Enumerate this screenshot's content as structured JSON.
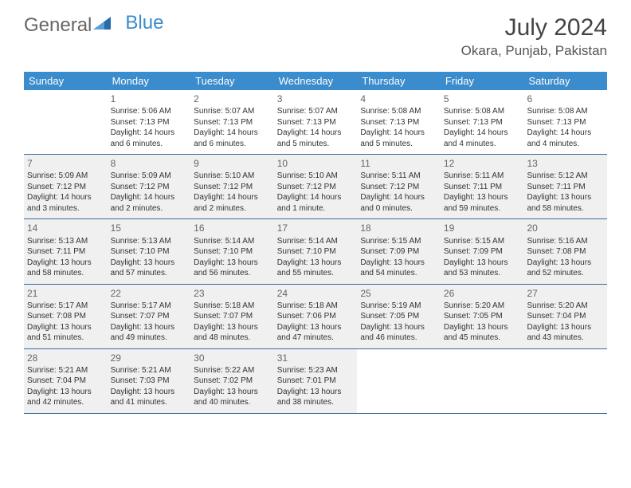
{
  "logo": {
    "part1": "General",
    "part2": "Blue"
  },
  "title": "July 2024",
  "location": "Okara, Punjab, Pakistan",
  "colors": {
    "header_bg": "#3a8ccc",
    "header_text": "#ffffff",
    "border": "#3a6a9c",
    "shaded_bg": "#f0f0f0",
    "cell_bg": "#ffffff",
    "text": "#333333",
    "daynum": "#666666",
    "logo_gray": "#666666",
    "logo_blue": "#3a8ccc"
  },
  "day_names": [
    "Sunday",
    "Monday",
    "Tuesday",
    "Wednesday",
    "Thursday",
    "Friday",
    "Saturday"
  ],
  "weeks": [
    [
      {
        "day": "",
        "sunrise": "",
        "sunset": "",
        "daylight": "",
        "shaded": false
      },
      {
        "day": "1",
        "sunrise": "Sunrise: 5:06 AM",
        "sunset": "Sunset: 7:13 PM",
        "daylight": "Daylight: 14 hours and 6 minutes.",
        "shaded": false
      },
      {
        "day": "2",
        "sunrise": "Sunrise: 5:07 AM",
        "sunset": "Sunset: 7:13 PM",
        "daylight": "Daylight: 14 hours and 6 minutes.",
        "shaded": false
      },
      {
        "day": "3",
        "sunrise": "Sunrise: 5:07 AM",
        "sunset": "Sunset: 7:13 PM",
        "daylight": "Daylight: 14 hours and 5 minutes.",
        "shaded": false
      },
      {
        "day": "4",
        "sunrise": "Sunrise: 5:08 AM",
        "sunset": "Sunset: 7:13 PM",
        "daylight": "Daylight: 14 hours and 5 minutes.",
        "shaded": false
      },
      {
        "day": "5",
        "sunrise": "Sunrise: 5:08 AM",
        "sunset": "Sunset: 7:13 PM",
        "daylight": "Daylight: 14 hours and 4 minutes.",
        "shaded": false
      },
      {
        "day": "6",
        "sunrise": "Sunrise: 5:08 AM",
        "sunset": "Sunset: 7:13 PM",
        "daylight": "Daylight: 14 hours and 4 minutes.",
        "shaded": false
      }
    ],
    [
      {
        "day": "7",
        "sunrise": "Sunrise: 5:09 AM",
        "sunset": "Sunset: 7:12 PM",
        "daylight": "Daylight: 14 hours and 3 minutes.",
        "shaded": true
      },
      {
        "day": "8",
        "sunrise": "Sunrise: 5:09 AM",
        "sunset": "Sunset: 7:12 PM",
        "daylight": "Daylight: 14 hours and 2 minutes.",
        "shaded": true
      },
      {
        "day": "9",
        "sunrise": "Sunrise: 5:10 AM",
        "sunset": "Sunset: 7:12 PM",
        "daylight": "Daylight: 14 hours and 2 minutes.",
        "shaded": true
      },
      {
        "day": "10",
        "sunrise": "Sunrise: 5:10 AM",
        "sunset": "Sunset: 7:12 PM",
        "daylight": "Daylight: 14 hours and 1 minute.",
        "shaded": true
      },
      {
        "day": "11",
        "sunrise": "Sunrise: 5:11 AM",
        "sunset": "Sunset: 7:12 PM",
        "daylight": "Daylight: 14 hours and 0 minutes.",
        "shaded": true
      },
      {
        "day": "12",
        "sunrise": "Sunrise: 5:11 AM",
        "sunset": "Sunset: 7:11 PM",
        "daylight": "Daylight: 13 hours and 59 minutes.",
        "shaded": true
      },
      {
        "day": "13",
        "sunrise": "Sunrise: 5:12 AM",
        "sunset": "Sunset: 7:11 PM",
        "daylight": "Daylight: 13 hours and 58 minutes.",
        "shaded": true
      }
    ],
    [
      {
        "day": "14",
        "sunrise": "Sunrise: 5:13 AM",
        "sunset": "Sunset: 7:11 PM",
        "daylight": "Daylight: 13 hours and 58 minutes.",
        "shaded": true
      },
      {
        "day": "15",
        "sunrise": "Sunrise: 5:13 AM",
        "sunset": "Sunset: 7:10 PM",
        "daylight": "Daylight: 13 hours and 57 minutes.",
        "shaded": true
      },
      {
        "day": "16",
        "sunrise": "Sunrise: 5:14 AM",
        "sunset": "Sunset: 7:10 PM",
        "daylight": "Daylight: 13 hours and 56 minutes.",
        "shaded": true
      },
      {
        "day": "17",
        "sunrise": "Sunrise: 5:14 AM",
        "sunset": "Sunset: 7:10 PM",
        "daylight": "Daylight: 13 hours and 55 minutes.",
        "shaded": true
      },
      {
        "day": "18",
        "sunrise": "Sunrise: 5:15 AM",
        "sunset": "Sunset: 7:09 PM",
        "daylight": "Daylight: 13 hours and 54 minutes.",
        "shaded": true
      },
      {
        "day": "19",
        "sunrise": "Sunrise: 5:15 AM",
        "sunset": "Sunset: 7:09 PM",
        "daylight": "Daylight: 13 hours and 53 minutes.",
        "shaded": true
      },
      {
        "day": "20",
        "sunrise": "Sunrise: 5:16 AM",
        "sunset": "Sunset: 7:08 PM",
        "daylight": "Daylight: 13 hours and 52 minutes.",
        "shaded": true
      }
    ],
    [
      {
        "day": "21",
        "sunrise": "Sunrise: 5:17 AM",
        "sunset": "Sunset: 7:08 PM",
        "daylight": "Daylight: 13 hours and 51 minutes.",
        "shaded": true
      },
      {
        "day": "22",
        "sunrise": "Sunrise: 5:17 AM",
        "sunset": "Sunset: 7:07 PM",
        "daylight": "Daylight: 13 hours and 49 minutes.",
        "shaded": true
      },
      {
        "day": "23",
        "sunrise": "Sunrise: 5:18 AM",
        "sunset": "Sunset: 7:07 PM",
        "daylight": "Daylight: 13 hours and 48 minutes.",
        "shaded": true
      },
      {
        "day": "24",
        "sunrise": "Sunrise: 5:18 AM",
        "sunset": "Sunset: 7:06 PM",
        "daylight": "Daylight: 13 hours and 47 minutes.",
        "shaded": true
      },
      {
        "day": "25",
        "sunrise": "Sunrise: 5:19 AM",
        "sunset": "Sunset: 7:05 PM",
        "daylight": "Daylight: 13 hours and 46 minutes.",
        "shaded": true
      },
      {
        "day": "26",
        "sunrise": "Sunrise: 5:20 AM",
        "sunset": "Sunset: 7:05 PM",
        "daylight": "Daylight: 13 hours and 45 minutes.",
        "shaded": true
      },
      {
        "day": "27",
        "sunrise": "Sunrise: 5:20 AM",
        "sunset": "Sunset: 7:04 PM",
        "daylight": "Daylight: 13 hours and 43 minutes.",
        "shaded": true
      }
    ],
    [
      {
        "day": "28",
        "sunrise": "Sunrise: 5:21 AM",
        "sunset": "Sunset: 7:04 PM",
        "daylight": "Daylight: 13 hours and 42 minutes.",
        "shaded": true
      },
      {
        "day": "29",
        "sunrise": "Sunrise: 5:21 AM",
        "sunset": "Sunset: 7:03 PM",
        "daylight": "Daylight: 13 hours and 41 minutes.",
        "shaded": true
      },
      {
        "day": "30",
        "sunrise": "Sunrise: 5:22 AM",
        "sunset": "Sunset: 7:02 PM",
        "daylight": "Daylight: 13 hours and 40 minutes.",
        "shaded": true
      },
      {
        "day": "31",
        "sunrise": "Sunrise: 5:23 AM",
        "sunset": "Sunset: 7:01 PM",
        "daylight": "Daylight: 13 hours and 38 minutes.",
        "shaded": true
      },
      {
        "day": "",
        "sunrise": "",
        "sunset": "",
        "daylight": "",
        "shaded": false
      },
      {
        "day": "",
        "sunrise": "",
        "sunset": "",
        "daylight": "",
        "shaded": false
      },
      {
        "day": "",
        "sunrise": "",
        "sunset": "",
        "daylight": "",
        "shaded": false
      }
    ]
  ]
}
